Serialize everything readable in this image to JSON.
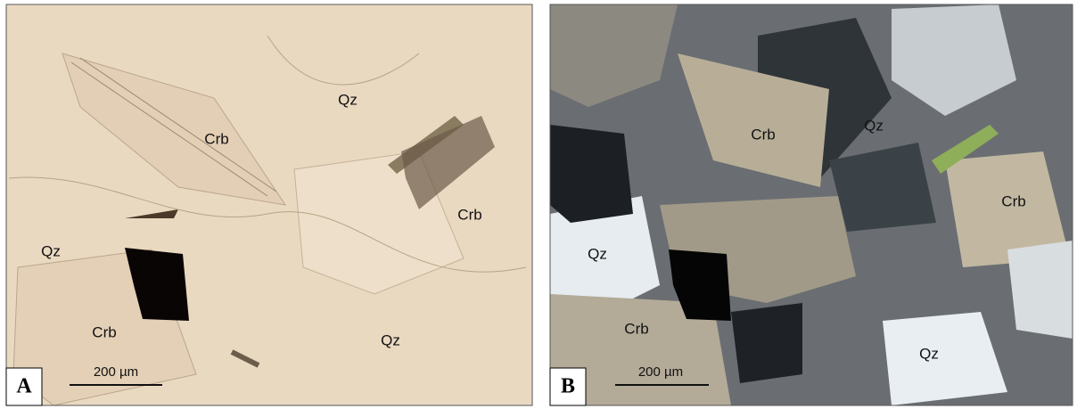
{
  "panels": [
    {
      "letter": "A",
      "labels": [
        "Qz",
        "Crb",
        "Crb",
        "Qz",
        "Crb",
        "Qz"
      ],
      "scale_bar": "200 µm"
    },
    {
      "letter": "B",
      "labels": [
        "Crb",
        "Qz",
        "Crb",
        "Qz",
        "Crb",
        "Qz"
      ],
      "scale_bar": "200 µm"
    }
  ]
}
